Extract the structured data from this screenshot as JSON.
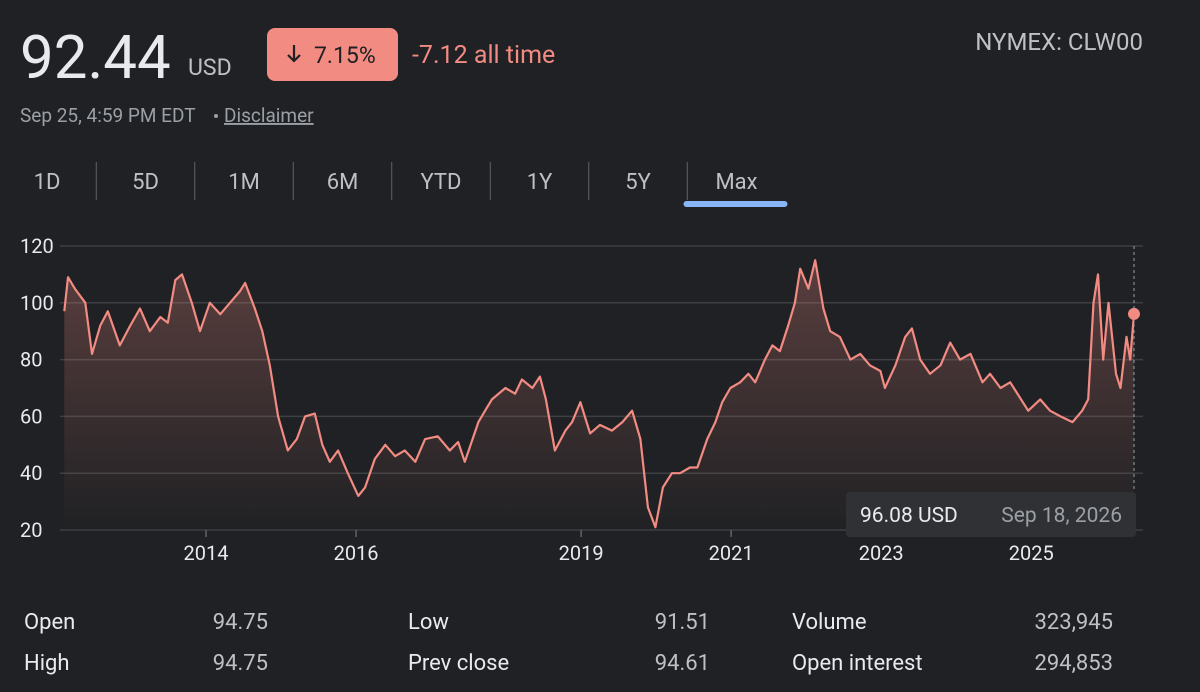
{
  "header": {
    "price": "92.44",
    "currency": "USD",
    "change": "7.15%",
    "all_time": "-7.12 all time",
    "ticker": "NYMEX: CLW00",
    "timestamp": "Sep 25, 4:59 PM EDT",
    "disclaimer": "Disclaimer"
  },
  "tabs": [
    "1D",
    "5D",
    "1M",
    "6M",
    "YTD",
    "1Y",
    "5Y",
    "Max"
  ],
  "selected_tab": 7,
  "chart_data": {
    "type": "line",
    "x": [
      2012.11,
      2012.16,
      2012.25,
      2012.39,
      2012.48,
      2012.59,
      2012.69,
      2012.85,
      2012.99,
      2013.12,
      2013.25,
      2013.39,
      2013.49,
      2013.59,
      2013.68,
      2013.81,
      2013.92,
      2014.05,
      2014.19,
      2014.32,
      2014.45,
      2014.52,
      2014.65,
      2014.75,
      2014.85,
      2014.96,
      2015.09,
      2015.21,
      2015.32,
      2015.45,
      2015.55,
      2015.65,
      2015.76,
      2015.89,
      2016.03,
      2016.12,
      2016.25,
      2016.39,
      2016.52,
      2016.65,
      2016.79,
      2016.92,
      2017.09,
      2017.25,
      2017.36,
      2017.45,
      2017.63,
      2017.72,
      2017.81,
      2017.99,
      2018.12,
      2018.21,
      2018.35,
      2018.45,
      2018.53,
      2018.65,
      2018.79,
      2018.88,
      2018.99,
      2019.12,
      2019.25,
      2019.41,
      2019.55,
      2019.68,
      2019.79,
      2019.89,
      2019.99,
      2020.09,
      2020.21,
      2020.32,
      2020.45,
      2020.55,
      2020.68,
      2020.79,
      2020.88,
      2020.99,
      2021.12,
      2021.23,
      2021.32,
      2021.45,
      2021.55,
      2021.65,
      2021.76,
      2021.85,
      2021.92,
      2022.03,
      2022.12,
      2022.23,
      2022.32,
      2022.45,
      2022.59,
      2022.72,
      2022.85,
      2022.99,
      2023.05,
      2023.19,
      2023.32,
      2023.41,
      2023.52,
      2023.65,
      2023.79,
      2023.92,
      2024.05,
      2024.19,
      2024.35,
      2024.45,
      2024.59,
      2024.72,
      2024.96,
      2025.12,
      2025.25,
      2025.39,
      2025.55,
      2025.68,
      2025.76,
      2025.83,
      2025.89,
      2025.96,
      2026.03,
      2026.13,
      2026.19,
      2026.27,
      2026.32,
      2026.37
    ],
    "series": [
      {
        "color": "#f28b82",
        "values": [
          97,
          109,
          105,
          100,
          82,
          92,
          97,
          85,
          92,
          98,
          90,
          95,
          93,
          108,
          110,
          100,
          90,
          100,
          96,
          100,
          104,
          107,
          98,
          90,
          78,
          60,
          48,
          52,
          60,
          61,
          50,
          44,
          48,
          40,
          32,
          35,
          45,
          50,
          46,
          48,
          44,
          52,
          53,
          48,
          51,
          44,
          58,
          62,
          66,
          70,
          68,
          73,
          70,
          74,
          66,
          48,
          55,
          58,
          65,
          54,
          57,
          55,
          58,
          62,
          52,
          28,
          21,
          35,
          40,
          40,
          42,
          42,
          52,
          58,
          65,
          70,
          72,
          75,
          72,
          80,
          85,
          83,
          92,
          100,
          112,
          105,
          115,
          98,
          90,
          88,
          80,
          82,
          78,
          76,
          70,
          78,
          88,
          91,
          80,
          75,
          78,
          86,
          80,
          82,
          72,
          75,
          70,
          72,
          62,
          66,
          62,
          60,
          58,
          62,
          66,
          100,
          110,
          80,
          100,
          75,
          70,
          88,
          80,
          96.08
        ]
      }
    ],
    "xlim": [
      2011.52,
      2026.49
    ],
    "ylim": [
      20,
      120
    ],
    "xticks": [
      2014,
      2016,
      2019,
      2021,
      2023,
      2025
    ],
    "yticks": [
      20,
      40,
      60,
      80,
      100,
      120
    ],
    "grid": true,
    "tooltip": {
      "value": "96.08",
      "unit": "USD",
      "date": "Sep 18, 2026"
    }
  },
  "stats": [
    [
      {
        "label": "Open",
        "value": "94.75"
      },
      {
        "label": "Low",
        "value": "91.51"
      },
      {
        "label": "Volume",
        "value": "323,945"
      }
    ],
    [
      {
        "label": "High",
        "value": "94.75"
      },
      {
        "label": "Prev close",
        "value": "94.61"
      },
      {
        "label": "Open interest",
        "value": "294,853"
      }
    ]
  ]
}
